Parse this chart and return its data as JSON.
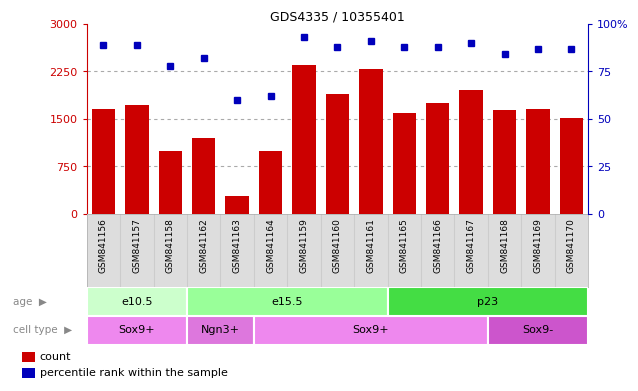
{
  "title": "GDS4335 / 10355401",
  "samples": [
    "GSM841156",
    "GSM841157",
    "GSM841158",
    "GSM841162",
    "GSM841163",
    "GSM841164",
    "GSM841159",
    "GSM841160",
    "GSM841161",
    "GSM841165",
    "GSM841166",
    "GSM841167",
    "GSM841168",
    "GSM841169",
    "GSM841170"
  ],
  "counts": [
    1650,
    1720,
    1000,
    1200,
    280,
    1000,
    2350,
    1900,
    2280,
    1600,
    1750,
    1950,
    1640,
    1650,
    1520
  ],
  "percentile_ranks": [
    89,
    89,
    78,
    82,
    60,
    62,
    93,
    88,
    91,
    88,
    88,
    90,
    84,
    87,
    87
  ],
  "ylim_left": [
    0,
    3000
  ],
  "ylim_right": [
    0,
    100
  ],
  "yticks_left": [
    0,
    750,
    1500,
    2250,
    3000
  ],
  "yticks_right": [
    0,
    25,
    50,
    75,
    100
  ],
  "bar_color": "#cc0000",
  "dot_color": "#0000bb",
  "age_groups": [
    {
      "label": "e10.5",
      "start": 0,
      "end": 3,
      "color": "#ccffcc"
    },
    {
      "label": "e15.5",
      "start": 3,
      "end": 9,
      "color": "#99ff99"
    },
    {
      "label": "p23",
      "start": 9,
      "end": 15,
      "color": "#44dd44"
    }
  ],
  "cell_type_groups": [
    {
      "label": "Sox9+",
      "start": 0,
      "end": 3,
      "color": "#ee88ee"
    },
    {
      "label": "Ngn3+",
      "start": 3,
      "end": 5,
      "color": "#dd77dd"
    },
    {
      "label": "Sox9+",
      "start": 5,
      "end": 12,
      "color": "#ee88ee"
    },
    {
      "label": "Sox9-",
      "start": 12,
      "end": 15,
      "color": "#cc55cc"
    }
  ],
  "legend_count_label": "count",
  "legend_pct_label": "percentile rank within the sample",
  "grid_dotted_color": "#aaaaaa",
  "separator_color": "#cccccc",
  "left_axis_color": "#cc0000",
  "right_axis_color": "#0000bb",
  "xlabels_bg": "#dddddd"
}
